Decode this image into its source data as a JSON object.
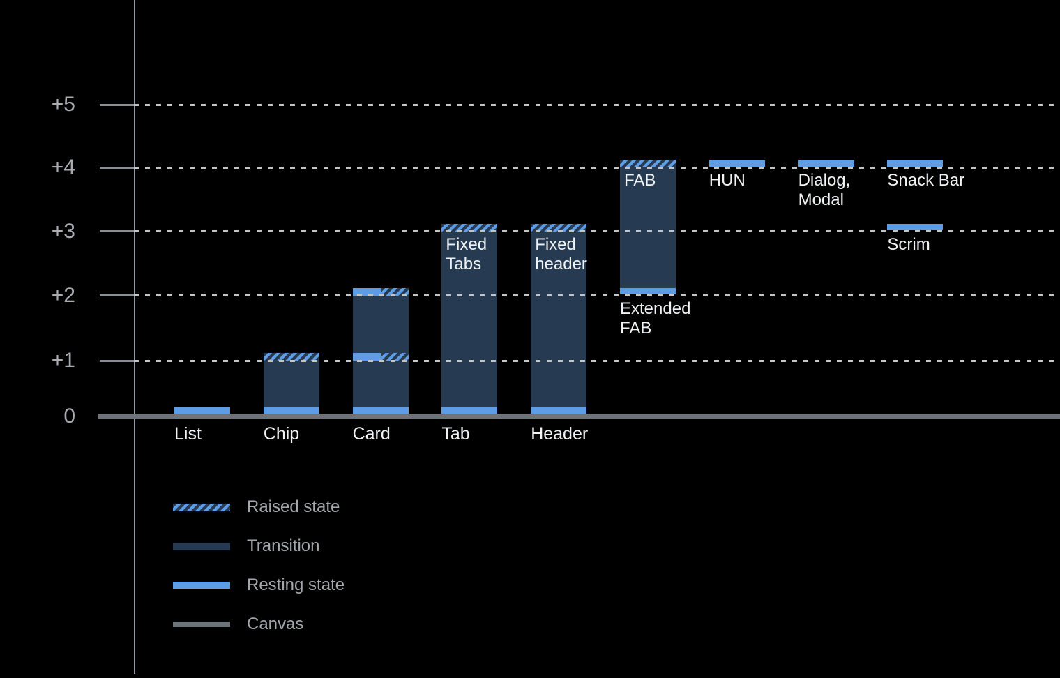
{
  "colors": {
    "background": "#000000",
    "resting_blue": "#5E9DE6",
    "transition_navy": "#263B52",
    "canvas_gray": "#6E737A",
    "gridline": "#C2C6CA",
    "axis": "#9298A0",
    "tick": "#8A8F96",
    "tick_label": "#A9ADB2",
    "bar_label": "#F0F2F4",
    "legend_label": "#A4A8AD"
  },
  "axis": {
    "ticks": [
      {
        "label": "+5",
        "level": 5
      },
      {
        "label": "+4",
        "level": 4
      },
      {
        "label": "+3",
        "level": 3
      },
      {
        "label": "+2",
        "level": 2
      },
      {
        "label": "+1",
        "level": 1
      },
      {
        "label": "0",
        "level": 0
      }
    ]
  },
  "chart_data": {
    "type": "bar",
    "description": "Material-style elevation chart: UI components with resting, transition and raised elevation states above the canvas (0).",
    "ylim": [
      0,
      5
    ],
    "ytick_labels": [
      "0",
      "+1",
      "+2",
      "+3",
      "+4",
      "+5"
    ],
    "items": [
      {
        "name": "List",
        "col": 0,
        "segments": [
          {
            "type": "resting",
            "at": 0
          }
        ],
        "labels": [
          {
            "pos": "baseline",
            "lines": [
              "List"
            ]
          }
        ]
      },
      {
        "name": "Chip",
        "col": 1,
        "segments": [
          {
            "type": "transition",
            "from": 0,
            "to": 1
          },
          {
            "type": "raised",
            "at": 1
          },
          {
            "type": "resting",
            "at": 0
          }
        ],
        "labels": [
          {
            "pos": "baseline",
            "lines": [
              "Chip"
            ]
          }
        ]
      },
      {
        "name": "Card",
        "col": 2,
        "segments": [
          {
            "type": "transition",
            "from": 0,
            "to": 2
          },
          {
            "type": "resting_raised",
            "at": 2
          },
          {
            "type": "resting_raised",
            "at": 1
          },
          {
            "type": "resting",
            "at": 0
          }
        ],
        "labels": [
          {
            "pos": "baseline",
            "lines": [
              "Card"
            ]
          }
        ]
      },
      {
        "name": "Tab",
        "col": 3,
        "segments": [
          {
            "type": "transition",
            "from": 0,
            "to": 3
          },
          {
            "type": "raised",
            "at": 3
          },
          {
            "type": "resting",
            "at": 0
          }
        ],
        "labels": [
          {
            "pos": "baseline",
            "lines": [
              "Tab"
            ]
          },
          {
            "pos": "inner",
            "at": 3,
            "lines": [
              "Fixed",
              "Tabs"
            ]
          }
        ]
      },
      {
        "name": "Header",
        "col": 4,
        "segments": [
          {
            "type": "transition",
            "from": 0,
            "to": 3
          },
          {
            "type": "raised",
            "at": 3
          },
          {
            "type": "resting",
            "at": 0
          }
        ],
        "labels": [
          {
            "pos": "baseline",
            "lines": [
              "Header"
            ]
          },
          {
            "pos": "inner",
            "at": 3,
            "lines": [
              "Fixed",
              "header"
            ]
          }
        ]
      },
      {
        "name": "FAB",
        "col": 5,
        "segments": [
          {
            "type": "transition",
            "from": 2,
            "to": 4
          },
          {
            "type": "raised",
            "at": 4
          },
          {
            "type": "resting",
            "at": 2
          }
        ],
        "labels": [
          {
            "pos": "inner",
            "at": 4,
            "lines": [
              "FAB"
            ]
          },
          {
            "pos": "below",
            "at": 2,
            "lines": [
              "Extended",
              "FAB"
            ]
          }
        ]
      },
      {
        "name": "HUN",
        "col": 6,
        "segments": [
          {
            "type": "resting",
            "at": 4
          }
        ],
        "labels": [
          {
            "pos": "below",
            "at": 4,
            "lines": [
              "HUN"
            ]
          }
        ]
      },
      {
        "name": "Dialog, Modal",
        "col": 7,
        "segments": [
          {
            "type": "resting",
            "at": 4
          }
        ],
        "labels": [
          {
            "pos": "below",
            "at": 4,
            "lines": [
              "Dialog,",
              "Modal"
            ]
          }
        ]
      },
      {
        "name": "Snack Bar",
        "col": 8,
        "segments": [
          {
            "type": "resting",
            "at": 4
          }
        ],
        "labels": [
          {
            "pos": "below",
            "at": 4,
            "lines": [
              "Snack Bar"
            ]
          }
        ]
      },
      {
        "name": "Scrim",
        "col": 8,
        "segments": [
          {
            "type": "resting",
            "at": 3
          }
        ],
        "labels": [
          {
            "pos": "below",
            "at": 3,
            "lines": [
              "Scrim"
            ]
          }
        ]
      }
    ]
  },
  "legend": {
    "items": [
      {
        "type": "raised",
        "label": "Raised state"
      },
      {
        "type": "transition",
        "label": "Transition"
      },
      {
        "type": "resting",
        "label": "Resting state"
      },
      {
        "type": "canvas",
        "label": "Canvas"
      }
    ]
  }
}
